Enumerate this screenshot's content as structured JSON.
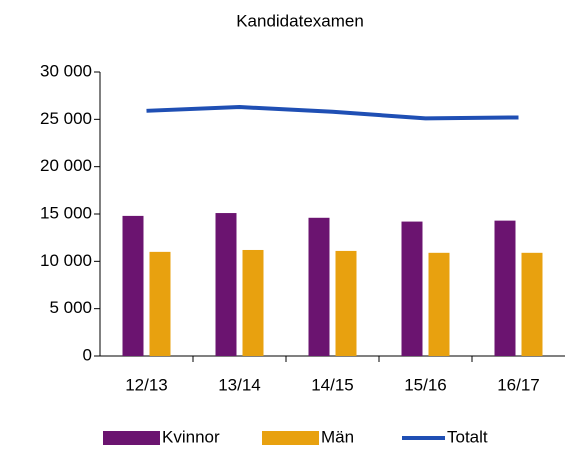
{
  "chart_data": {
    "type": "bar",
    "title": "Kandidatexamen",
    "categories": [
      "12/13",
      "13/14",
      "14/15",
      "15/16",
      "16/17"
    ],
    "series": [
      {
        "name": "Kvinnor",
        "color": "#6b1470",
        "values": [
          14800,
          15100,
          14600,
          14200,
          14300
        ]
      },
      {
        "name": "Män",
        "color": "#e8a10f",
        "values": [
          11000,
          11200,
          11100,
          10900,
          10900
        ]
      },
      {
        "name": "Totalt",
        "type": "line",
        "color": "#1f4fb4",
        "values": [
          25900,
          26300,
          25800,
          25100,
          25200
        ]
      }
    ],
    "ylim": [
      0,
      30000
    ],
    "yticks": [
      0,
      {
        "value": 5000,
        "label": "5 000"
      },
      {
        "value": 10000,
        "label": "10 000"
      },
      {
        "value": 15000,
        "label": "15 000"
      },
      {
        "value": 20000,
        "label": "20 000"
      },
      {
        "value": 25000,
        "label": "25 000"
      },
      {
        "value": 30000,
        "label": "30 000"
      }
    ],
    "legend": "bottom"
  }
}
